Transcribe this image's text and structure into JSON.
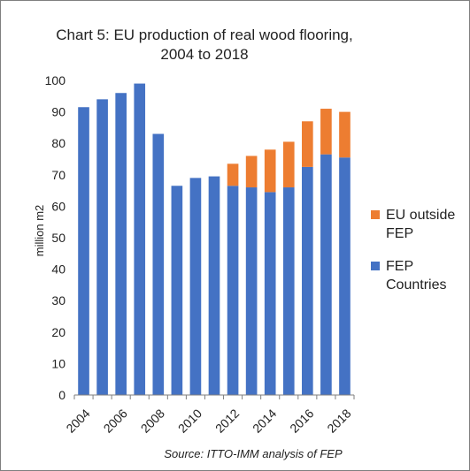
{
  "chart_data": {
    "type": "bar",
    "stacked": true,
    "title_line1": "Chart 5: EU production of real wood flooring,",
    "title_line2": "2004 to 2018",
    "xlabel": "",
    "ylabel": "million m2",
    "ylim": [
      0,
      100
    ],
    "ytick_step": 10,
    "yticks": [
      "0",
      "10",
      "20",
      "30",
      "40",
      "50",
      "60",
      "70",
      "80",
      "90",
      "100"
    ],
    "categories": [
      "2004",
      "2005",
      "2006",
      "2007",
      "2008",
      "2009",
      "2010",
      "2011",
      "2012",
      "2013",
      "2014",
      "2015",
      "2016",
      "2017",
      "2018"
    ],
    "xtick_labels": [
      "2004",
      "",
      "2006",
      "",
      "2008",
      "",
      "2010",
      "",
      "2012",
      "",
      "2014",
      "",
      "2016",
      "",
      "2018"
    ],
    "series": [
      {
        "name": "FEP Countries",
        "color": "#4472c4",
        "values": [
          91.5,
          94,
          96,
          99,
          83,
          66.5,
          69,
          69.5,
          66.5,
          66,
          64.5,
          66,
          72.5,
          76.5,
          75.5
        ]
      },
      {
        "name": "EU outside FEP",
        "color": "#ed7d31",
        "values": [
          0,
          0,
          0,
          0,
          0,
          0,
          0,
          0,
          7,
          10,
          13.5,
          14.5,
          14.5,
          14.5,
          14.5
        ]
      }
    ],
    "legend_position": "right",
    "grid": false,
    "source": "Source: ITTO-IMM analysis of FEP"
  },
  "legend": {
    "items": [
      {
        "label_line1": "EU outside",
        "label_line2": "FEP",
        "color": "#ed7d31"
      },
      {
        "label_line1": "FEP",
        "label_line2": "Countries",
        "color": "#4472c4"
      }
    ]
  }
}
